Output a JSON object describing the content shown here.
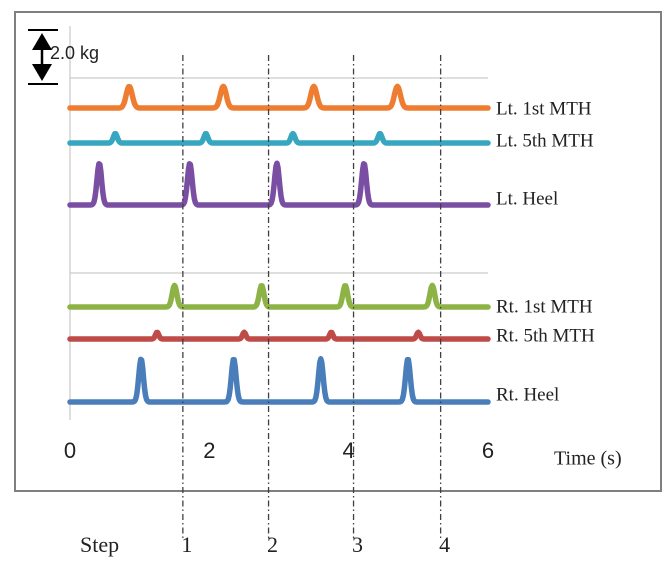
{
  "chart_data": {
    "type": "line",
    "scale_label": "2.0 kg",
    "x_ticks": [
      0,
      2,
      4,
      6
    ],
    "xlabel": "Time (s)",
    "xlim": [
      0,
      6
    ],
    "step_label": "Step",
    "steps": [
      {
        "label": "1",
        "time": 1.62
      },
      {
        "label": "2",
        "time": 2.85
      },
      {
        "label": "3",
        "time": 4.07
      },
      {
        "label": "4",
        "time": 5.32
      }
    ],
    "peak_unit": "kg",
    "groups": [
      {
        "series": [
          {
            "name": "Lt.  1st  MTH",
            "color": "#ee7d31",
            "peaks": [
              0.85,
              2.2,
              3.5,
              4.7
            ],
            "amplitude": 0.8,
            "width": 0.09
          },
          {
            "name": "Lt.  5th MTH",
            "color": "#37a6c0",
            "peaks": [
              0.65,
              1.95,
              3.2,
              4.45
            ],
            "amplitude": 0.35,
            "width": 0.06
          },
          {
            "name": "Lt.  Heel",
            "color": "#7a4fa3",
            "peaks": [
              0.42,
              1.72,
              2.97,
              4.22
            ],
            "amplitude": 1.55,
            "width": 0.07
          }
        ]
      },
      {
        "series": [
          {
            "name": "Rt. 1st  MTH",
            "color": "#8db347",
            "peaks": [
              1.5,
              2.75,
              3.95,
              5.2
            ],
            "amplitude": 0.8,
            "width": 0.07
          },
          {
            "name": "Rt. 5th MTH",
            "color": "#be4b48",
            "peaks": [
              1.25,
              2.5,
              3.75,
              5.0
            ],
            "amplitude": 0.25,
            "width": 0.05
          },
          {
            "name": "Rt. Heel",
            "color": "#4a7ebb",
            "peaks": [
              1.02,
              2.35,
              3.6,
              4.85
            ],
            "amplitude": 1.6,
            "width": 0.07
          }
        ]
      }
    ]
  }
}
